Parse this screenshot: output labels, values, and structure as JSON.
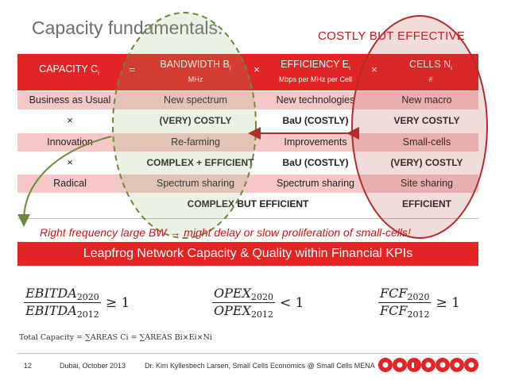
{
  "title": "Capacity fundamentals.",
  "callout": "COSTLY BUT EFFECTIVE",
  "header": {
    "capacity": "CAPACITY C",
    "capacity_sub": "i",
    "eq": "=",
    "bandwidth": "BANDWIDTH B",
    "bandwidth_sub": "i",
    "bandwidth_unit": "MHz",
    "times1": "×",
    "efficiency": "EFFICIENCY E",
    "efficiency_sub": "i",
    "efficiency_unit": "Mbps per MHz per Cell",
    "times2": "×",
    "cells": "CELLS N",
    "cells_sub": "i",
    "cells_unit": "#"
  },
  "rows": [
    {
      "label": "Business as Usual",
      "bw": "New spectrum",
      "eff": "New technologies",
      "cells": "New macro"
    },
    {
      "label": "×",
      "bw": "(VERY) COSTLY",
      "eff": "BaU (COSTLY)",
      "cells": "VERY COSTLY"
    },
    {
      "label": "Innovation",
      "bw": "Re-farming",
      "eff": "Improvements",
      "cells": "Small-cells"
    },
    {
      "label": "×",
      "bw": "COMPLEX + EFFICIENT",
      "eff": "BaU (COSTLY)",
      "cells": "(VERY) COSTLY"
    },
    {
      "label": "Radical",
      "bw": "Spectrum sharing",
      "eff": "Spectrum sharing",
      "cells": "Site sharing"
    },
    {
      "label": "",
      "bw": "COMPLEX BUT EFFICIENT",
      "eff": "",
      "cells": "EFFICIENT"
    }
  ],
  "note": "Right frequency large BW → might delay or slow proliferation of small-cells!",
  "banner": "Leapfrog Network Capacity & Quality within Financial KPIs",
  "formulas": {
    "f1_num": "EBITDA",
    "f1_num_sub": "2020",
    "f1_den": "EBITDA",
    "f1_den_sub": "2012",
    "f1_rel": "≥ 1",
    "f2_num": "OPEX",
    "f2_num_sub": "2020",
    "f2_den": "OPEX",
    "f2_den_sub": "2012",
    "f2_rel": "< 1",
    "f3_num": "FCF",
    "f3_num_sub": "2020",
    "f3_den": "FCF",
    "f3_den_sub": "2012",
    "f3_rel": "≥ 1"
  },
  "total_capacity": "Total Capacity = ∑AREAS Ci = ∑AREAS Bi×Ei×Ni",
  "footer": {
    "page": "12",
    "date": "Dubai, October 2013",
    "author": "Dr. Kim Kyllesbech Larsen, Small Cells Economics @ Small Cells MENA",
    "logo": "ooredoo"
  },
  "colors": {
    "accent": "#e22424",
    "pink_row": "#f6c7c7",
    "ellipse_green": "#6a8a3a",
    "ellipse_red": "#b52a2a"
  }
}
